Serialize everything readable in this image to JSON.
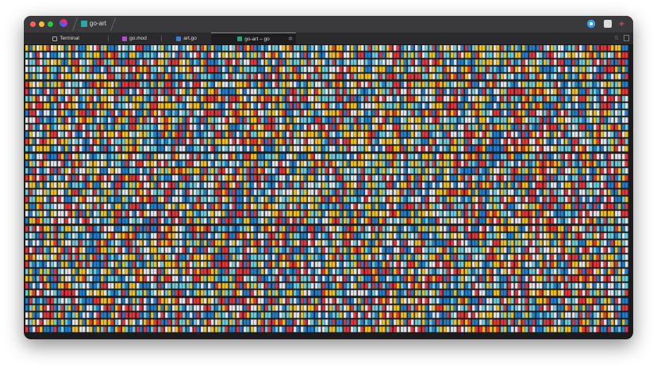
{
  "window": {
    "project_title": "go-art"
  },
  "tabs": [
    {
      "label": "Terminal",
      "icon": "terminal-icon"
    },
    {
      "label": "go.mod",
      "icon": "go-mod-icon"
    },
    {
      "label": "art.go",
      "icon": "go-file-icon"
    },
    {
      "label": "go-art – go",
      "icon": "run-output-icon",
      "active": true
    }
  ],
  "toolbar": {
    "icons": [
      "eye-icon",
      "layout-icon",
      "add-sparkle-icon",
      "collapse-icon",
      "split-view-icon"
    ]
  },
  "art": {
    "background": "#1a1a1a",
    "palette": [
      "#e8343b",
      "#1f7fd0",
      "#6ccfe0",
      "#f4c21a",
      "#e6e8ee"
    ]
  }
}
